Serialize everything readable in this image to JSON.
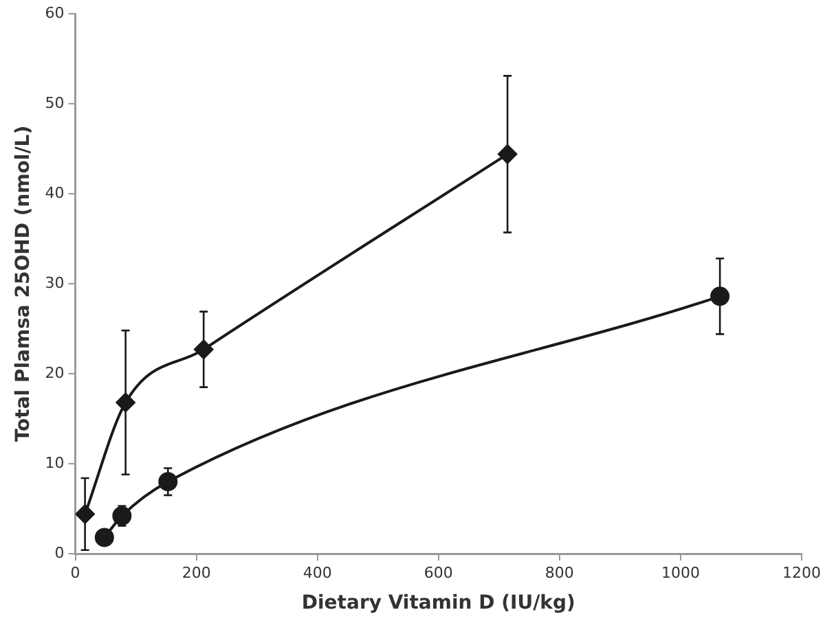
{
  "chart_data": {
    "type": "line",
    "xlabel": "Dietary Vitamin D (IU/kg)",
    "ylabel": "Total Plamsa 25OHD (nmol/L)",
    "xlim": [
      0,
      1200
    ],
    "xticks": [
      0,
      200,
      400,
      600,
      800,
      1000,
      1200
    ],
    "ylim": [
      0,
      60
    ],
    "yticks": [
      0,
      10,
      20,
      30,
      40,
      50,
      60
    ],
    "grid": false,
    "legend": false,
    "series": [
      {
        "color": "#1a1a1a",
        "marker": "diamond",
        "x": [
          16,
          83,
          212,
          714
        ],
        "values": [
          4.4,
          16.8,
          22.7,
          44.4
        ],
        "errors": [
          4,
          8,
          4.2,
          8.7
        ]
      },
      {
        "color": "#1a1a1a",
        "marker": "circle",
        "x": [
          48,
          77,
          153,
          1065
        ],
        "values": [
          1.8,
          4.2,
          8,
          28.6
        ],
        "errors": [
          null,
          1.1,
          1.5,
          4.2
        ]
      }
    ]
  }
}
